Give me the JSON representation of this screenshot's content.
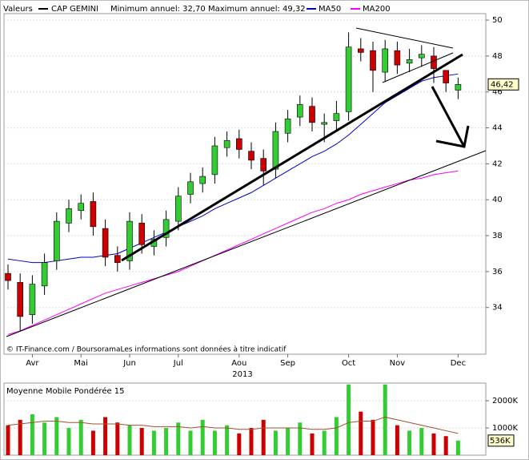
{
  "chart_data": [
    {
      "type": "candlestick",
      "legend_label": "Valeurs",
      "annotation": "Minimum annuel: 32,70 Maximum annuel: 49,32",
      "source": "© IT-Finance.com / BoursoramaLes informations sont données à titre indicatif",
      "x_label": "2013",
      "categories": [
        null,
        null,
        "Avr",
        null,
        null,
        null,
        "Mai",
        null,
        null,
        null,
        "Jun",
        null,
        null,
        null,
        "Jul",
        null,
        null,
        null,
        null,
        "Aou",
        null,
        null,
        null,
        "Sep",
        null,
        null,
        null,
        null,
        "Oct",
        null,
        null,
        null,
        "Nov",
        null,
        null,
        null,
        null,
        "Dec"
      ],
      "up_color": "#33cc33",
      "down_color": "#cc0000",
      "series": [
        {
          "name": "CAP GEMINI",
          "color": "#000000",
          "open": [
            35.9,
            35.4,
            33.6,
            35.2,
            36.6,
            38.7,
            39.4,
            39.9,
            38.4,
            36.9,
            36.6,
            38.7,
            37.4,
            37.9,
            38.8,
            40.3,
            40.9,
            41.4,
            42.9,
            43.4,
            42.7,
            42.3,
            41.7,
            43.7,
            44.6,
            45.2,
            44.2,
            44.4,
            44.9,
            48.4,
            48.3,
            47.1,
            48.3,
            47.6,
            47.9,
            48.0,
            47.2,
            46.1
          ],
          "high": [
            36.4,
            35.9,
            35.8,
            37.0,
            39.3,
            40.0,
            40.3,
            40.4,
            38.9,
            37.4,
            39.3,
            39.2,
            38.3,
            39.4,
            40.7,
            41.5,
            41.8,
            43.5,
            43.8,
            43.9,
            43.2,
            42.8,
            44.3,
            45.0,
            45.8,
            45.7,
            44.8,
            45.5,
            49.32,
            49.0,
            48.8,
            48.9,
            48.8,
            48.4,
            48.6,
            48.5,
            47.2,
            46.8
          ],
          "low": [
            35.0,
            32.7,
            33.1,
            34.7,
            36.1,
            38.2,
            38.9,
            38.0,
            36.3,
            36.0,
            36.1,
            37.0,
            36.9,
            37.4,
            38.3,
            39.8,
            40.4,
            40.9,
            42.4,
            42.3,
            41.7,
            40.8,
            41.2,
            43.2,
            44.1,
            43.8,
            43.2,
            43.9,
            44.4,
            47.7,
            46.0,
            46.6,
            47.0,
            47.1,
            47.4,
            46.5,
            46.0,
            45.6
          ],
          "close": [
            35.5,
            33.5,
            35.3,
            36.5,
            38.8,
            39.5,
            39.8,
            38.5,
            36.8,
            36.5,
            38.8,
            37.5,
            37.8,
            38.9,
            40.2,
            41.0,
            41.3,
            43.0,
            43.3,
            42.8,
            42.2,
            41.6,
            43.8,
            44.5,
            45.3,
            44.3,
            44.3,
            44.8,
            48.5,
            48.2,
            47.2,
            48.4,
            47.5,
            47.8,
            48.1,
            47.3,
            46.5,
            46.42
          ],
          "value_labels": [
            null,
            null,
            null,
            null,
            null,
            null,
            null,
            null,
            null,
            null,
            null,
            null,
            null,
            null,
            null,
            null,
            null,
            null,
            null,
            null,
            null,
            null,
            null,
            null,
            null,
            null,
            null,
            null,
            null,
            null,
            null,
            null,
            null,
            null,
            null,
            null,
            null,
            "46,42"
          ]
        },
        {
          "name": "MA50",
          "color": "#0000cc",
          "values": [
            36.7,
            36.6,
            36.5,
            36.5,
            36.6,
            36.7,
            36.8,
            36.8,
            36.9,
            37.0,
            37.3,
            37.6,
            37.9,
            38.2,
            38.5,
            38.8,
            39.1,
            39.5,
            39.8,
            40.1,
            40.4,
            40.8,
            41.2,
            41.6,
            42.0,
            42.4,
            42.7,
            43.1,
            43.6,
            44.2,
            44.8,
            45.4,
            45.8,
            46.2,
            46.6,
            46.8,
            46.9,
            47.0
          ]
        },
        {
          "name": "MA200",
          "color": "#ff00ff",
          "values": [
            32.5,
            32.7,
            33.0,
            33.3,
            33.6,
            33.9,
            34.2,
            34.5,
            34.8,
            35.0,
            35.2,
            35.4,
            35.6,
            35.8,
            36.0,
            36.3,
            36.6,
            36.9,
            37.2,
            37.5,
            37.8,
            38.1,
            38.4,
            38.7,
            39.0,
            39.3,
            39.5,
            39.8,
            40.0,
            40.3,
            40.5,
            40.7,
            40.9,
            41.1,
            41.2,
            41.4,
            41.5,
            41.6
          ]
        }
      ],
      "ylim": [
        31.4,
        50.36
      ],
      "yticks": [
        34,
        36,
        38,
        40,
        42,
        44,
        46,
        48,
        50
      ],
      "grid": true
    },
    {
      "type": "bar",
      "title": "Moyenne Mobile Pondérée 15",
      "values": [
        1100000,
        1300000,
        1500000,
        1200000,
        1400000,
        1000000,
        1300000,
        900000,
        1400000,
        1200000,
        1100000,
        1000000,
        900000,
        1000000,
        1200000,
        900000,
        1300000,
        900000,
        1100000,
        800000,
        1000000,
        1300000,
        900000,
        1000000,
        1200000,
        800000,
        900000,
        1400000,
        2600000,
        1600000,
        1300000,
        2600000,
        1100000,
        900000,
        1000000,
        800000,
        700000,
        536000
      ],
      "value_labels": [
        null,
        null,
        null,
        null,
        null,
        null,
        null,
        null,
        null,
        null,
        null,
        null,
        null,
        null,
        null,
        null,
        null,
        null,
        null,
        null,
        null,
        null,
        null,
        null,
        null,
        null,
        null,
        null,
        null,
        null,
        null,
        null,
        null,
        null,
        null,
        null,
        null,
        "536K"
      ],
      "moving_average": {
        "color": "#a0522d",
        "values": [
          1100000,
          1150000,
          1200000,
          1250000,
          1250000,
          1200000,
          1200000,
          1150000,
          1150000,
          1150000,
          1100000,
          1100000,
          1050000,
          1050000,
          1050000,
          1000000,
          1050000,
          1000000,
          1000000,
          950000,
          950000,
          1000000,
          1000000,
          1000000,
          1000000,
          950000,
          950000,
          1000000,
          1200000,
          1250000,
          1250000,
          1400000,
          1300000,
          1200000,
          1100000,
          1000000,
          900000,
          800000
        ]
      },
      "ylim": [
        0,
        2650000
      ],
      "yticks": [
        {
          "value": 1000000,
          "label": "1000K"
        },
        {
          "value": 2000000,
          "label": "2000K"
        }
      ],
      "grid": true
    }
  ]
}
